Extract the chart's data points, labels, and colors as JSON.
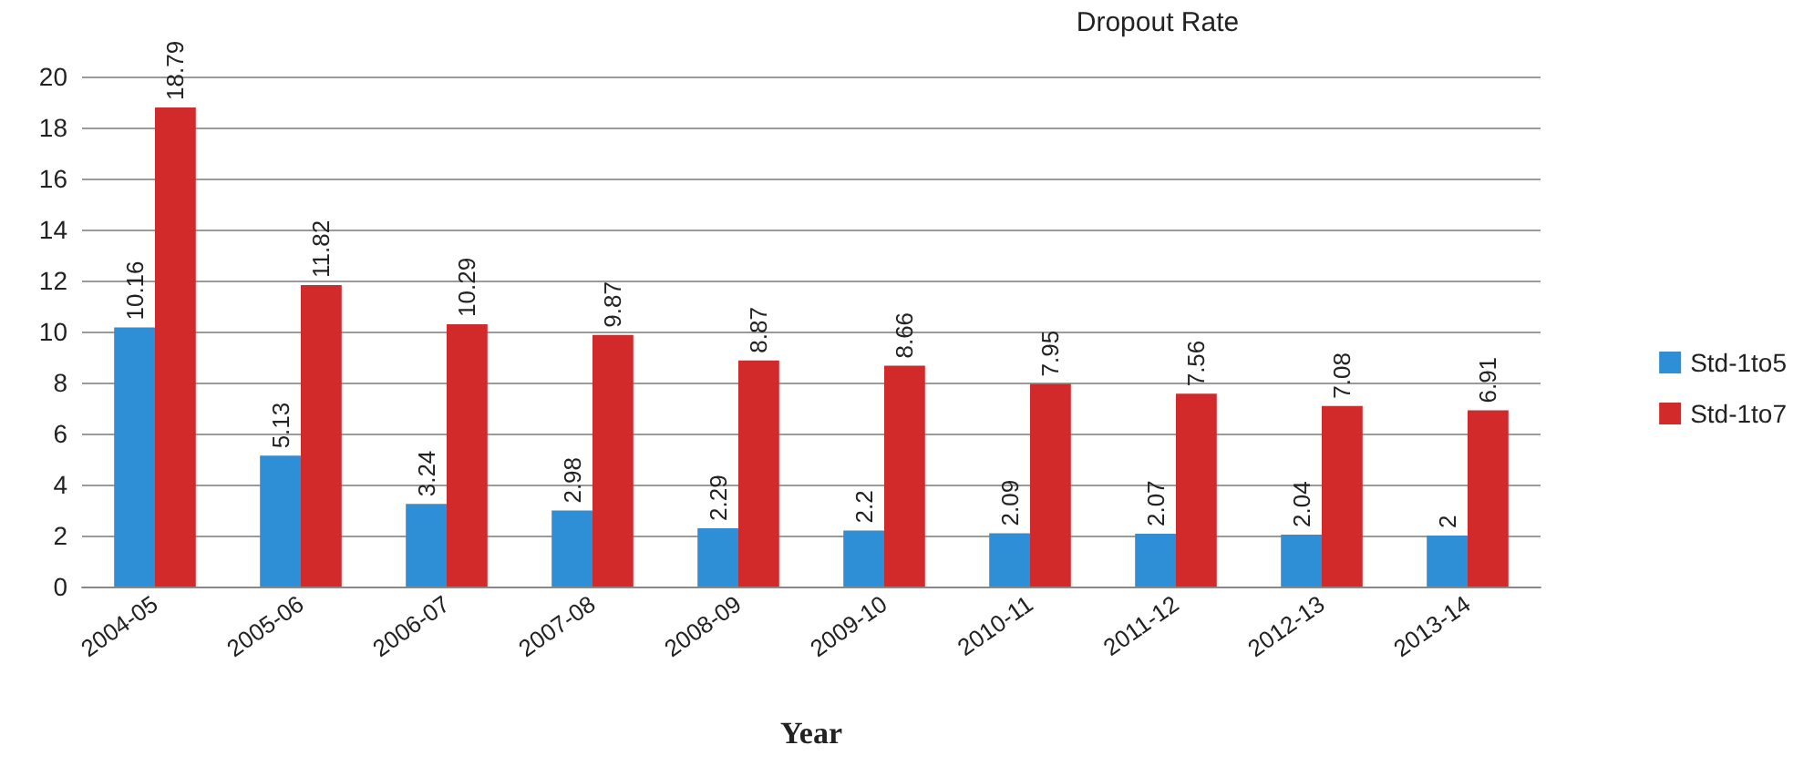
{
  "chart_data": {
    "type": "bar",
    "title": "Dropout Rate",
    "xlabel": "Year",
    "categories": [
      "2004-05",
      "2005-06",
      "2006-07",
      "2007-08",
      "2008-09",
      "2009-10",
      "2010-11",
      "2011-12",
      "2012-13",
      "2013-14"
    ],
    "series": [
      {
        "name": "Std-1to5",
        "color": "#2f8fd6",
        "values": [
          10.16,
          5.13,
          3.24,
          2.98,
          2.29,
          2.2,
          2.09,
          2.07,
          2.04,
          2
        ]
      },
      {
        "name": "Std-1to7",
        "color": "#d22a2a",
        "values": [
          18.79,
          11.82,
          10.29,
          9.87,
          8.87,
          8.66,
          7.95,
          7.56,
          7.08,
          6.91
        ]
      }
    ],
    "ylim": [
      0,
      20
    ],
    "yticks": [
      0,
      2,
      4,
      6,
      8,
      10,
      12,
      14,
      16,
      18,
      20
    ],
    "grid": "y",
    "legend": "right",
    "data_labels": true
  }
}
